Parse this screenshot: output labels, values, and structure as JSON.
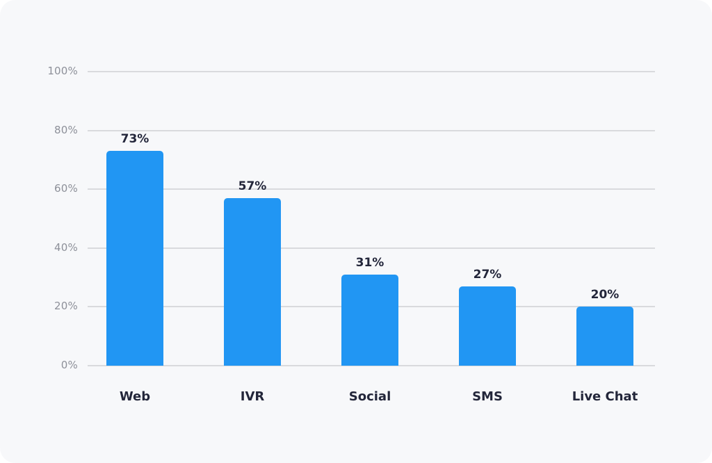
{
  "chart_data": {
    "type": "bar",
    "title": "",
    "xlabel": "",
    "ylabel": "",
    "categories": [
      "Web",
      "IVR",
      "Social",
      "SMS",
      "Live Chat"
    ],
    "values": [
      73,
      57,
      31,
      27,
      20
    ],
    "data_labels": [
      "73%",
      "57%",
      "31%",
      "27%",
      "20%"
    ],
    "ylim": [
      0,
      100
    ],
    "yticks": [
      0,
      20,
      40,
      60,
      80,
      100
    ],
    "ytick_labels": [
      "0%",
      "20%",
      "40%",
      "60%",
      "80%",
      "100%"
    ],
    "grid": true,
    "legend": null,
    "bar_color": "#2196f3"
  }
}
